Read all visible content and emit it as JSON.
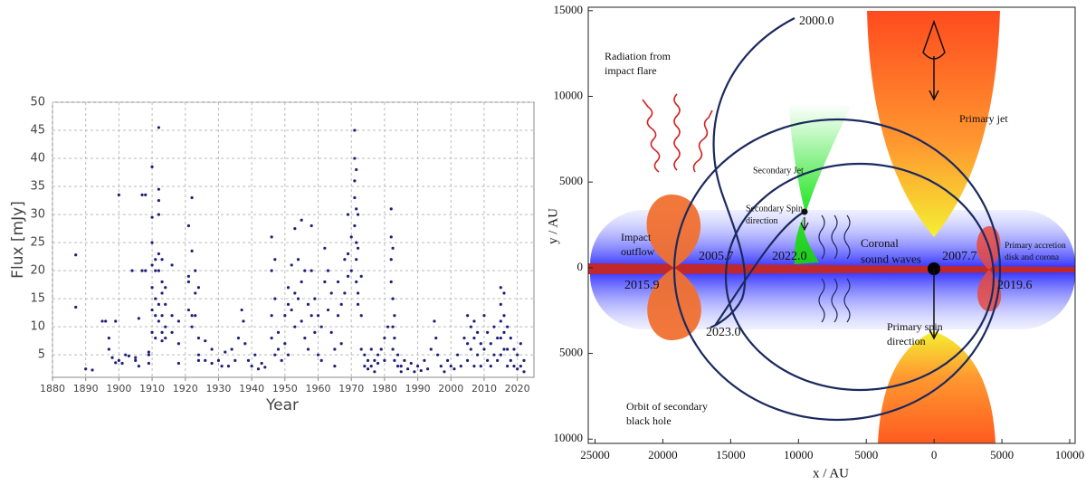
{
  "chart_data": [
    {
      "type": "scatter",
      "xlabel": "Year",
      "ylabel": "Flux [mJy]",
      "color": "#1f1f7a",
      "grid": true,
      "xlim": [
        1880,
        2025
      ],
      "ylim": [
        1,
        50
      ],
      "xticks": [
        1880,
        1890,
        1900,
        1910,
        1920,
        1930,
        1940,
        1950,
        1960,
        1970,
        1980,
        1990,
        2000,
        2010,
        2020
      ],
      "yticks": [
        5,
        10,
        15,
        20,
        25,
        30,
        35,
        40,
        45,
        50
      ],
      "x": [
        1887,
        1887,
        1890,
        1892,
        1895,
        1896,
        1897,
        1897,
        1898,
        1899,
        1899,
        1900,
        1900,
        1901,
        1902,
        1903,
        1904,
        1905,
        1905,
        1906,
        1906,
        1907,
        1907,
        1908,
        1908,
        1909,
        1909,
        1909,
        1910,
        1910,
        1910,
        1910,
        1910,
        1910,
        1910,
        1911,
        1911,
        1911,
        1911,
        1911,
        1912,
        1912,
        1912,
        1912,
        1912,
        1912,
        1912,
        1912,
        1913,
        1913,
        1913,
        1913,
        1913,
        1913,
        1914,
        1914,
        1914,
        1914,
        1916,
        1916,
        1916,
        1918,
        1918,
        1918,
        1921,
        1921,
        1921,
        1921,
        1922,
        1922,
        1922,
        1922,
        1923,
        1923,
        1923,
        1924,
        1924,
        1924,
        1924,
        1926,
        1926,
        1928,
        1928,
        1930,
        1931,
        1932,
        1933,
        1934,
        1935,
        1936,
        1937,
        1937.5,
        1938,
        1939,
        1940,
        1941,
        1942,
        1943,
        1944,
        1946,
        1946,
        1946,
        1946,
        1947,
        1947,
        1947,
        1948,
        1948,
        1949,
        1950,
        1950,
        1951,
        1951,
        1951,
        1952,
        1952,
        1953,
        1953,
        1953,
        1954,
        1954,
        1955,
        1955,
        1955,
        1956,
        1956,
        1957,
        1957,
        1958,
        1958,
        1958,
        1959,
        1959,
        1960,
        1960,
        1961,
        1961,
        1962,
        1962,
        1963,
        1963,
        1964,
        1964,
        1965,
        1965,
        1966,
        1966,
        1967,
        1967,
        1968,
        1968,
        1969,
        1969,
        1969,
        1970,
        1970,
        1971,
        1971,
        1971,
        1971,
        1971,
        1971.5,
        1971.5,
        1971.5,
        1971.5,
        1971.5,
        1972,
        1972,
        1972,
        1972,
        1973,
        1973,
        1973,
        1974,
        1974,
        1975,
        1975,
        1976,
        1976,
        1977,
        1977,
        1978,
        1978,
        1979,
        1980,
        1980,
        1981,
        1982,
        1982,
        1982,
        1982,
        1982.5,
        1982.5,
        1982.5,
        1982.5,
        1983,
        1983,
        1983,
        1984,
        1984,
        1985,
        1985,
        1986,
        1987,
        1988,
        1989,
        1990,
        1991,
        1992,
        1993,
        1994,
        1995,
        1995.5,
        1996,
        1997,
        1998,
        1999,
        2000,
        2001,
        2002,
        2003,
        2004,
        2005,
        2005,
        2005,
        2006,
        2006,
        2007,
        2007,
        2007,
        2008,
        2008,
        2009,
        2009,
        2010,
        2010,
        2011,
        2011,
        2012,
        2012,
        2013,
        2013,
        2014,
        2014,
        2015,
        2015,
        2015,
        2015,
        2015,
        2016,
        2016,
        2016,
        2016,
        2017,
        2017,
        2017,
        2018,
        2018,
        2019,
        2019,
        2020,
        2020,
        2021,
        2021,
        2022,
        2022
      ],
      "values": [
        22.8,
        13.5,
        2.5,
        2.3,
        11,
        11,
        8,
        6,
        4.5,
        3.6,
        11,
        33.5,
        4,
        3.5,
        5,
        4.8,
        20,
        4.5,
        4,
        11.5,
        3,
        33.5,
        20,
        33.5,
        20,
        5,
        5.5,
        3.5,
        38.5,
        29.5,
        25,
        21,
        17,
        13,
        9,
        22,
        20,
        15,
        12,
        8,
        45.5,
        34.5,
        32.5,
        30,
        23,
        20,
        14,
        11,
        22,
        18,
        16,
        12,
        9,
        7.5,
        17,
        14,
        10,
        8,
        21,
        12,
        9,
        11,
        7,
        3.5,
        28,
        19,
        18,
        13,
        33,
        23.5,
        12,
        10,
        20,
        16,
        12,
        17,
        8,
        5,
        4,
        4,
        7.5,
        6,
        3.5,
        4,
        3,
        5.5,
        3,
        6,
        4,
        8,
        13,
        11,
        7,
        4,
        3,
        5,
        2.5,
        3.5,
        2.8,
        26,
        20,
        12,
        8,
        22,
        15,
        5,
        9,
        6,
        4,
        12,
        7,
        17,
        14,
        5,
        21,
        13,
        27.5,
        16,
        10,
        22,
        15,
        29,
        18,
        11,
        20,
        8,
        14,
        6,
        28,
        20,
        12,
        15,
        9,
        12,
        5,
        10,
        4,
        24,
        18,
        20,
        13,
        16,
        9,
        6,
        3,
        18,
        12,
        14,
        7,
        22,
        16,
        30,
        23,
        19,
        26,
        20,
        45,
        40,
        36,
        33,
        28,
        38,
        31,
        25,
        22,
        18,
        30,
        24,
        16,
        14,
        19,
        12,
        6,
        5,
        3,
        4,
        2.5,
        6,
        3,
        4,
        2,
        5,
        3.5,
        6,
        4,
        8,
        10,
        31,
        26,
        22,
        18,
        24,
        15,
        10,
        6,
        12,
        8,
        4,
        5,
        3,
        3,
        2,
        4,
        2.5,
        3.5,
        2,
        3,
        2.2,
        4,
        2.5,
        6,
        11,
        8,
        5,
        3,
        2,
        4,
        3,
        2.5,
        5,
        3,
        8,
        12,
        7,
        4,
        10,
        6,
        11,
        8,
        3,
        9,
        5,
        7,
        3,
        12,
        6,
        9,
        4,
        7,
        3,
        10,
        5,
        8,
        4,
        17,
        14,
        11,
        8,
        5,
        16,
        12,
        9,
        6,
        10,
        6,
        3,
        8,
        4,
        6,
        3,
        5,
        2.5,
        7,
        3,
        4,
        2
      ]
    },
    {
      "type": "diagram",
      "xlabel": "x / AU",
      "ylabel": "y / AU",
      "xlim": [
        25500,
        -10400
      ],
      "ylim": [
        -10250,
        15200
      ],
      "xticks": [
        25000,
        20000,
        15000,
        10000,
        5000,
        0,
        {
          "value": -5000,
          "label": "5000"
        },
        {
          "value": -10000,
          "label": "10000"
        }
      ],
      "yticks": [
        15000,
        10000,
        5000,
        0,
        {
          "value": -5000,
          "label": "5000"
        },
        {
          "value": -10000,
          "label": "10000"
        }
      ],
      "annotations": [
        [
          "2000.0"
        ],
        [
          "Radiation from",
          "impact flare"
        ],
        [
          "Primary jet"
        ],
        [
          "Secondary Jet"
        ],
        [
          "Secondary Spin",
          "direction"
        ],
        [
          "Impact",
          "outflow"
        ],
        [
          "2005.7"
        ],
        [
          "2022.0"
        ],
        [
          "Coronal",
          "sound waves"
        ],
        [
          "2007.7"
        ],
        [
          "Primary accretion",
          "disk and corona"
        ],
        [
          "2015.9"
        ],
        [
          "2019.6"
        ],
        [
          "2023.0"
        ],
        [
          "Primary spin",
          "direction"
        ],
        [
          "Orbit of secondary",
          "black hole"
        ]
      ]
    }
  ]
}
